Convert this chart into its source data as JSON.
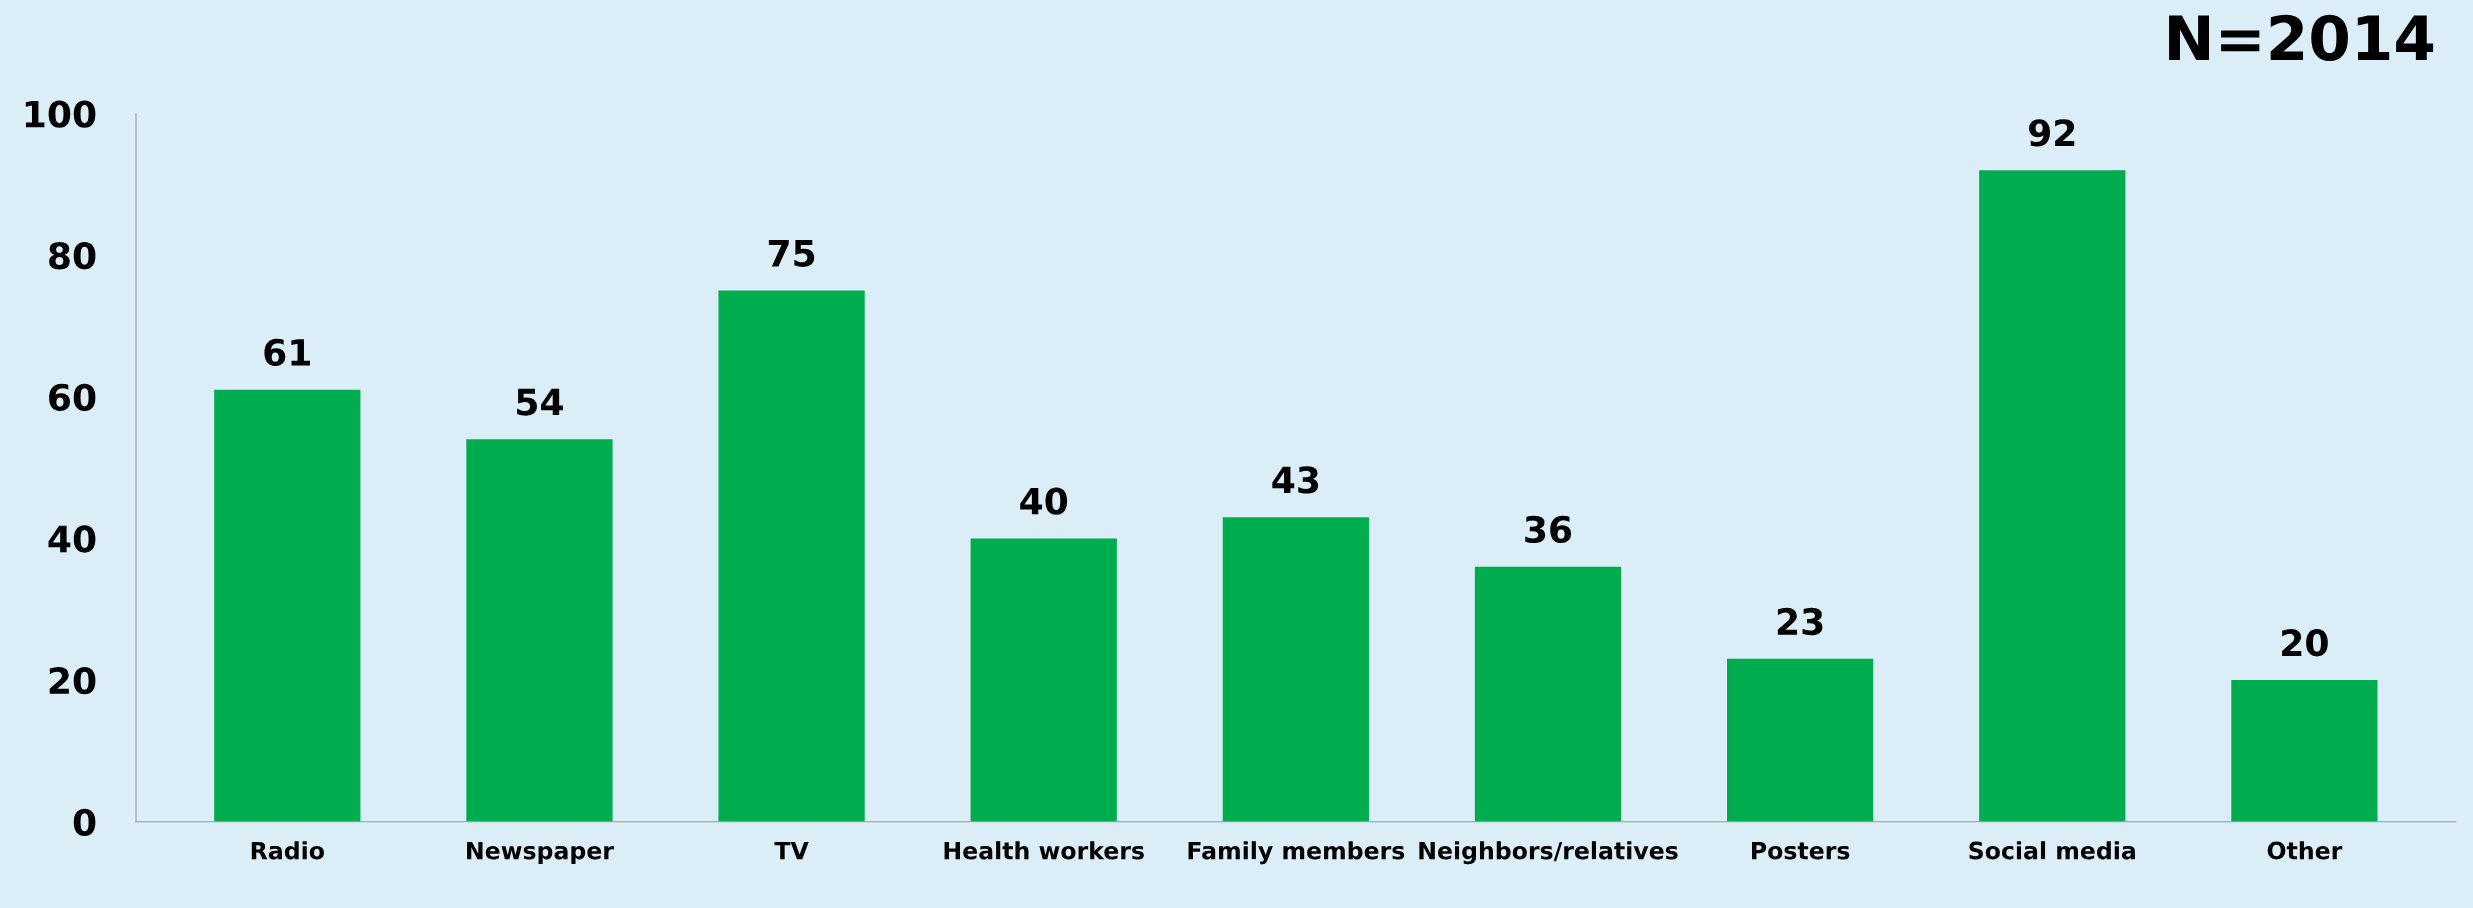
{
  "chart_data": {
    "type": "bar",
    "categories": [
      "Radio",
      "Newspaper",
      "TV",
      "Health workers",
      "Family members",
      "Neighbors/relatives",
      "Posters",
      "Social media",
      "Other"
    ],
    "values": [
      61,
      54,
      75,
      40,
      43,
      36,
      23,
      92,
      20
    ],
    "color": "#00ad4e",
    "ylim": [
      0,
      100
    ],
    "yticks": [
      0,
      20,
      40,
      60,
      80,
      100
    ],
    "data_labels": true,
    "grid": false,
    "annotations": [
      "N=2014"
    ]
  }
}
